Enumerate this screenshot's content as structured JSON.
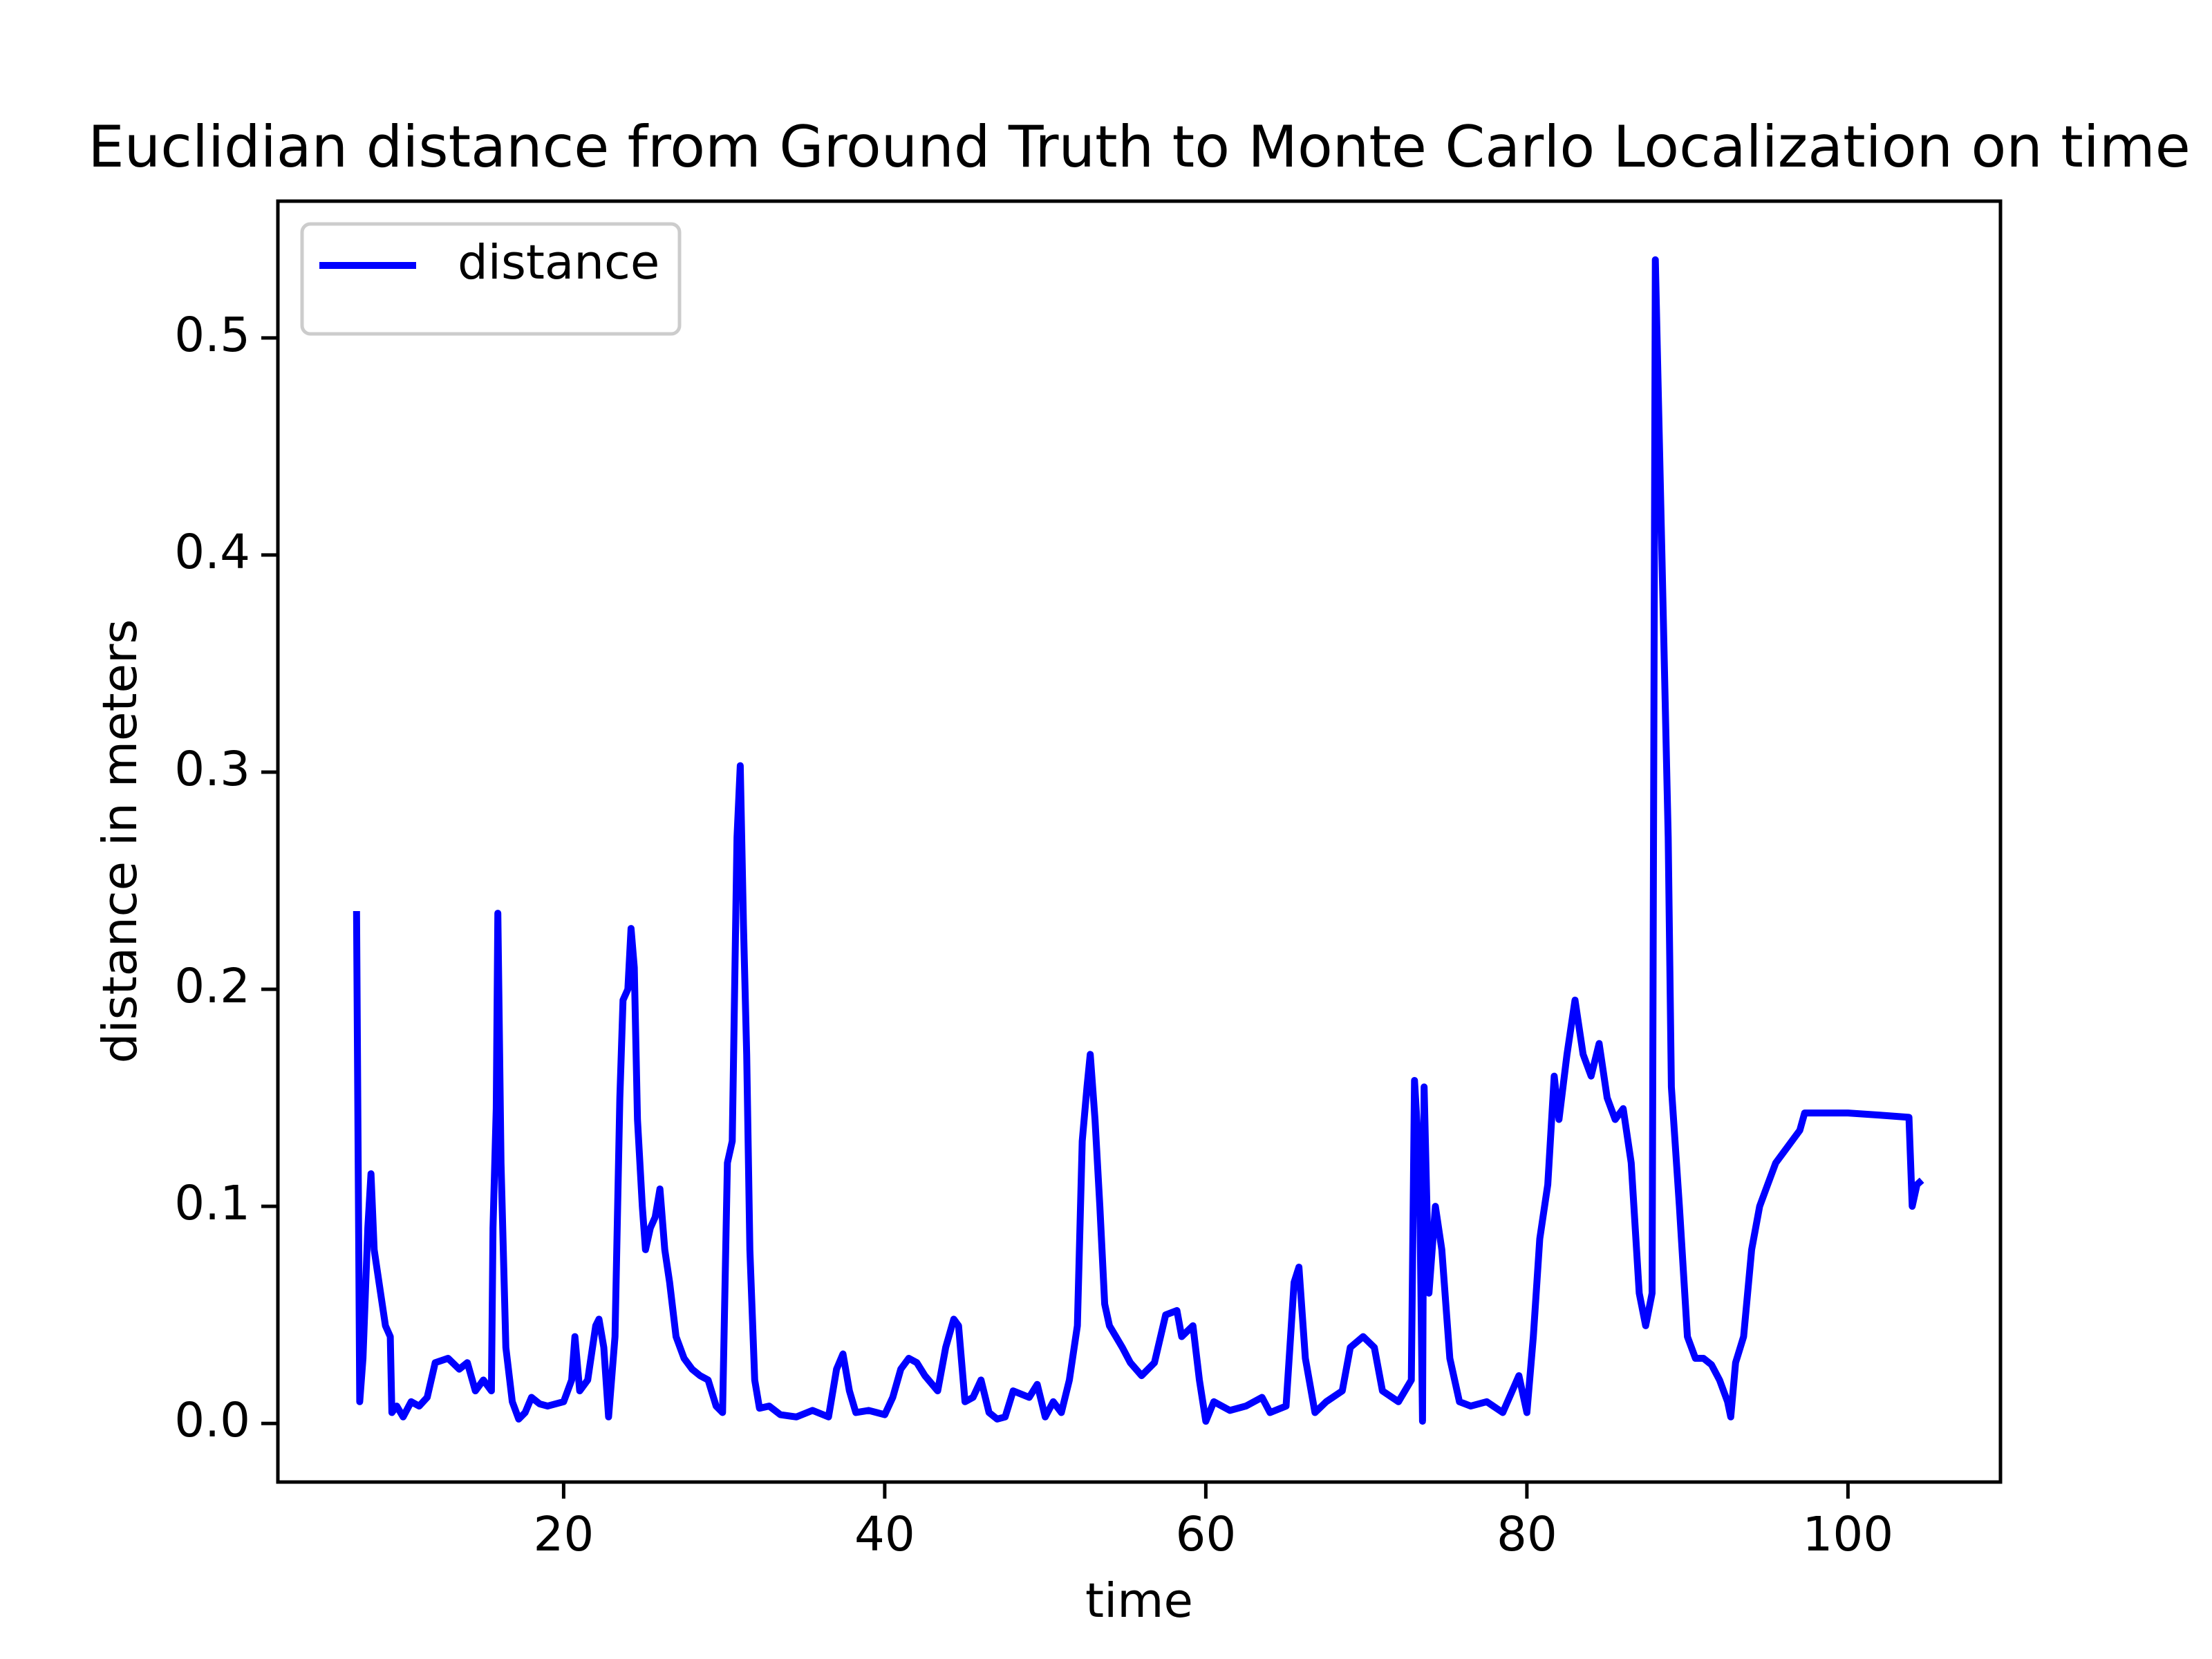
{
  "chart_data": {
    "type": "line",
    "title": "Euclidian distance from Ground Truth to Monte Carlo Localization on time",
    "x_label": "time",
    "y_label": "distance in meters",
    "x": [
      7.1,
      7.3,
      7.5,
      7.8,
      8.0,
      8.2,
      8.6,
      8.9,
      9.2,
      9.3,
      9.6,
      10.0,
      10.5,
      11.0,
      11.5,
      12.0,
      12.8,
      13.5,
      14.0,
      14.5,
      15.0,
      15.5,
      15.6,
      15.8,
      15.9,
      16.1,
      16.4,
      16.8,
      17.2,
      17.6,
      18.0,
      18.5,
      19.0,
      20.0,
      20.5,
      20.7,
      21.0,
      21.5,
      22.0,
      22.2,
      22.5,
      22.8,
      23.2,
      23.5,
      23.7,
      24.0,
      24.2,
      24.4,
      24.6,
      24.9,
      25.1,
      25.4,
      25.7,
      26.0,
      26.3,
      26.6,
      27.0,
      27.5,
      28.0,
      28.5,
      29.0,
      29.5,
      29.9,
      30.2,
      30.5,
      30.8,
      31.0,
      31.2,
      31.4,
      31.6,
      31.9,
      32.2,
      32.8,
      33.5,
      34.5,
      35.5,
      36.5,
      37.0,
      37.4,
      37.8,
      38.2,
      39.0,
      40.0,
      40.5,
      41.0,
      41.5,
      42.0,
      42.5,
      43.3,
      43.8,
      44.3,
      44.6,
      45.0,
      45.5,
      46.0,
      46.5,
      47.0,
      47.5,
      48.0,
      49.0,
      49.5,
      50.0,
      50.5,
      51.0,
      51.5,
      52.0,
      52.3,
      52.6,
      52.8,
      53.1,
      53.4,
      53.7,
      54.0,
      54.4,
      54.8,
      55.3,
      56.0,
      56.8,
      57.5,
      58.2,
      58.5,
      59.2,
      59.6,
      60.0,
      60.5,
      61.5,
      62.5,
      63.5,
      64.0,
      65.0,
      65.5,
      65.8,
      66.2,
      66.8,
      67.5,
      68.5,
      69.0,
      69.8,
      70.5,
      71.0,
      72.0,
      72.8,
      73.0,
      73.3,
      73.5,
      73.6,
      73.9,
      74.3,
      74.7,
      75.2,
      75.8,
      76.5,
      77.5,
      78.5,
      79.5,
      80.0,
      80.4,
      80.8,
      81.3,
      81.7,
      82.0,
      82.5,
      83.0,
      83.5,
      84.0,
      84.5,
      85.0,
      85.5,
      86.0,
      86.5,
      87.0,
      87.4,
      87.8,
      88.0,
      88.8,
      89.0,
      89.5,
      90.0,
      90.5,
      91.0,
      91.5,
      92.0,
      92.5,
      92.7,
      93.0,
      93.5,
      94.0,
      94.5,
      95.0,
      95.5,
      96.0,
      97.0,
      97.3,
      98,
      100,
      102,
      103.8,
      104.0,
      104.3,
      104.6
    ],
    "series": [
      {
        "name": "distance",
        "color": "#0000ff",
        "values": [
          0.236,
          0.01,
          0.03,
          0.09,
          0.115,
          0.08,
          0.06,
          0.045,
          0.04,
          0.005,
          0.008,
          0.003,
          0.01,
          0.008,
          0.012,
          0.028,
          0.03,
          0.025,
          0.028,
          0.015,
          0.02,
          0.015,
          0.09,
          0.145,
          0.235,
          0.12,
          0.035,
          0.01,
          0.002,
          0.005,
          0.012,
          0.009,
          0.008,
          0.01,
          0.02,
          0.04,
          0.015,
          0.02,
          0.045,
          0.048,
          0.035,
          0.003,
          0.04,
          0.15,
          0.195,
          0.2,
          0.228,
          0.21,
          0.14,
          0.1,
          0.08,
          0.09,
          0.095,
          0.108,
          0.08,
          0.065,
          0.04,
          0.03,
          0.025,
          0.022,
          0.02,
          0.008,
          0.005,
          0.12,
          0.13,
          0.27,
          0.303,
          0.23,
          0.17,
          0.08,
          0.02,
          0.007,
          0.008,
          0.004,
          0.003,
          0.006,
          0.003,
          0.025,
          0.032,
          0.015,
          0.005,
          0.006,
          0.004,
          0.012,
          0.025,
          0.03,
          0.028,
          0.022,
          0.015,
          0.035,
          0.048,
          0.045,
          0.01,
          0.012,
          0.02,
          0.005,
          0.002,
          0.003,
          0.015,
          0.012,
          0.018,
          0.003,
          0.01,
          0.005,
          0.02,
          0.045,
          0.13,
          0.155,
          0.17,
          0.14,
          0.1,
          0.055,
          0.045,
          0.04,
          0.035,
          0.028,
          0.022,
          0.028,
          0.05,
          0.052,
          0.04,
          0.045,
          0.02,
          0.001,
          0.01,
          0.006,
          0.008,
          0.012,
          0.005,
          0.008,
          0.065,
          0.072,
          0.03,
          0.005,
          0.01,
          0.015,
          0.035,
          0.04,
          0.035,
          0.015,
          0.01,
          0.02,
          0.158,
          0.12,
          0.001,
          0.155,
          0.06,
          0.1,
          0.08,
          0.03,
          0.01,
          0.008,
          0.01,
          0.005,
          0.022,
          0.005,
          0.04,
          0.085,
          0.11,
          0.16,
          0.14,
          0.17,
          0.195,
          0.17,
          0.16,
          0.175,
          0.15,
          0.14,
          0.145,
          0.12,
          0.06,
          0.045,
          0.06,
          0.536,
          0.27,
          0.155,
          0.1,
          0.04,
          0.03,
          0.03,
          0.027,
          0.02,
          0.01,
          0.003,
          0.028,
          0.04,
          0.08,
          0.1,
          0.11,
          0.12,
          0.125,
          0.135,
          0.143,
          0.143,
          0.143,
          0.142,
          0.141,
          0.1,
          0.11,
          0.112
        ]
      }
    ],
    "xlim": [
      2.2,
      109.5
    ],
    "ylim": [
      -0.027,
      0.563
    ],
    "xticks": [
      20,
      40,
      60,
      80,
      100
    ],
    "yticks": [
      {
        "value": 0,
        "label": "0.0"
      },
      0.1,
      0.2,
      0.3,
      0.4,
      0.5
    ],
    "legend": "upper left"
  }
}
